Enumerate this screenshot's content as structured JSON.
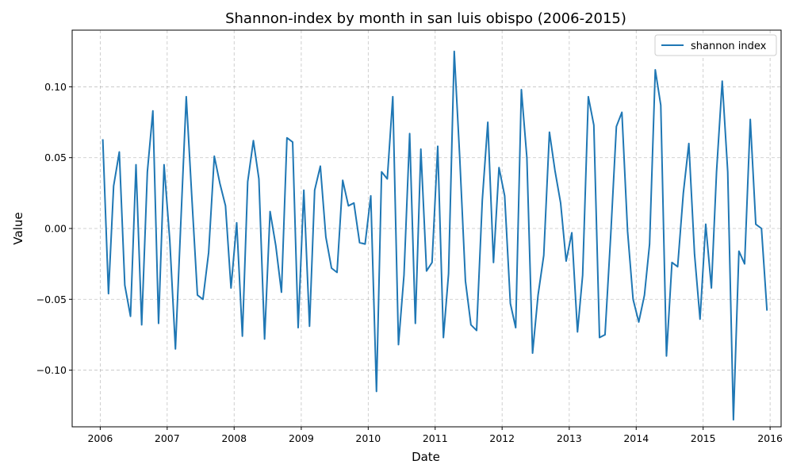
{
  "chart_data": {
    "type": "line",
    "title": "Shannon-index by month in san luis obispo (2006-2015)",
    "xlabel": "Date",
    "ylabel": "Value",
    "xlim": [
      "2005-08-01",
      "2016-03-01"
    ],
    "ylim": [
      -0.14,
      0.14
    ],
    "x_ticks": [
      "2006",
      "2007",
      "2008",
      "2009",
      "2010",
      "2011",
      "2012",
      "2013",
      "2014",
      "2015",
      "2016"
    ],
    "y_ticks": [
      -0.1,
      -0.05,
      0.0,
      0.05,
      0.1
    ],
    "y_tick_labels": [
      "−0.10",
      "−0.05",
      "0.00",
      "0.05",
      "0.10"
    ],
    "grid": true,
    "legend_position": "top-right",
    "color": "#1f77b4",
    "series": [
      {
        "name": "shannon index",
        "x": [
          "2006-01",
          "2006-02",
          "2006-03",
          "2006-04",
          "2006-05",
          "2006-06",
          "2006-07",
          "2006-08",
          "2006-09",
          "2006-10",
          "2006-11",
          "2006-12",
          "2007-01",
          "2007-02",
          "2007-03",
          "2007-04",
          "2007-05",
          "2007-06",
          "2007-07",
          "2007-08",
          "2007-09",
          "2007-10",
          "2007-11",
          "2007-12",
          "2008-01",
          "2008-02",
          "2008-03",
          "2008-04",
          "2008-05",
          "2008-06",
          "2008-07",
          "2008-08",
          "2008-09",
          "2008-10",
          "2008-11",
          "2008-12",
          "2009-01",
          "2009-02",
          "2009-03",
          "2009-04",
          "2009-05",
          "2009-06",
          "2009-07",
          "2009-08",
          "2009-09",
          "2009-10",
          "2009-11",
          "2009-12",
          "2010-01",
          "2010-02",
          "2010-03",
          "2010-04",
          "2010-05",
          "2010-06",
          "2010-07",
          "2010-08",
          "2010-09",
          "2010-10",
          "2010-11",
          "2010-12",
          "2011-01",
          "2011-02",
          "2011-03",
          "2011-04",
          "2011-05",
          "2011-06",
          "2011-07",
          "2011-08",
          "2011-09",
          "2011-10",
          "2011-11",
          "2011-12",
          "2012-01",
          "2012-02",
          "2012-03",
          "2012-04",
          "2012-05",
          "2012-06",
          "2012-07",
          "2012-08",
          "2012-09",
          "2012-10",
          "2012-11",
          "2012-12",
          "2013-01",
          "2013-02",
          "2013-03",
          "2013-04",
          "2013-05",
          "2013-06",
          "2013-07",
          "2013-08",
          "2013-09",
          "2013-10",
          "2013-11",
          "2013-12",
          "2014-01",
          "2014-02",
          "2014-03",
          "2014-04",
          "2014-05",
          "2014-06",
          "2014-07",
          "2014-08",
          "2014-09",
          "2014-10",
          "2014-11",
          "2014-12",
          "2015-01",
          "2015-02",
          "2015-03",
          "2015-04",
          "2015-05",
          "2015-06",
          "2015-07",
          "2015-08",
          "2015-09",
          "2015-10",
          "2015-11",
          "2015-12"
        ],
        "values": [
          0.063,
          -0.046,
          0.03,
          0.054,
          -0.04,
          -0.062,
          0.045,
          -0.068,
          0.04,
          0.083,
          -0.067,
          0.045,
          -0.008,
          -0.085,
          0.0,
          0.093,
          0.023,
          -0.047,
          -0.05,
          -0.017,
          0.051,
          0.032,
          0.016,
          -0.042,
          0.004,
          -0.076,
          0.033,
          0.062,
          0.035,
          -0.078,
          0.012,
          -0.012,
          -0.045,
          0.064,
          0.061,
          -0.07,
          0.027,
          -0.069,
          0.027,
          0.044,
          -0.006,
          -0.028,
          -0.031,
          0.034,
          0.016,
          0.018,
          -0.01,
          -0.011,
          0.023,
          -0.115,
          0.04,
          0.035,
          0.093,
          -0.082,
          -0.033,
          0.067,
          -0.067,
          0.056,
          -0.03,
          -0.024,
          0.058,
          -0.077,
          -0.032,
          0.125,
          0.05,
          -0.037,
          -0.068,
          -0.072,
          0.02,
          0.075,
          -0.024,
          0.043,
          0.023,
          -0.053,
          -0.07,
          0.098,
          0.05,
          -0.088,
          -0.047,
          -0.019,
          0.068,
          0.041,
          0.018,
          -0.023,
          -0.003,
          -0.073,
          -0.033,
          0.093,
          0.073,
          -0.077,
          -0.075,
          -0.005,
          0.072,
          0.082,
          -0.002,
          -0.05,
          -0.066,
          -0.047,
          -0.011,
          0.112,
          0.087,
          -0.09,
          -0.024,
          -0.027,
          0.025,
          0.06,
          -0.018,
          -0.064,
          0.003,
          -0.042,
          0.04,
          0.104,
          0.04,
          -0.135,
          -0.016,
          -0.025,
          0.077,
          0.003,
          0.0,
          -0.058
        ]
      }
    ]
  }
}
